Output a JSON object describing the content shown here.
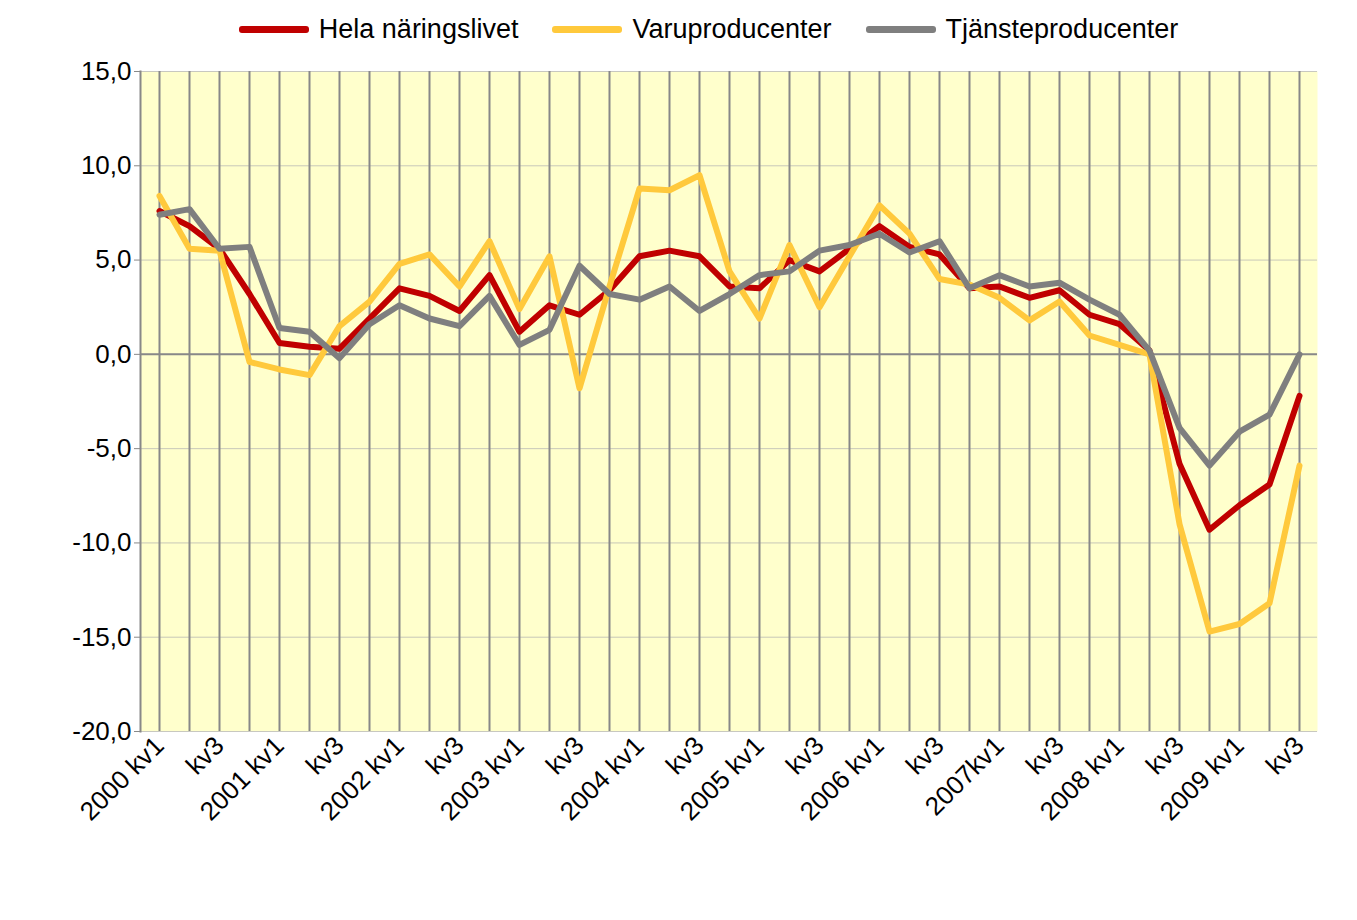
{
  "chart_data": {
    "type": "line",
    "categories": [
      "2000 kv1",
      null,
      "kv3",
      null,
      "2001 kv1",
      null,
      "kv3",
      null,
      "2002 kv1",
      null,
      "kv3",
      null,
      "2003 kv1",
      null,
      "kv3",
      null,
      "2004 kv1",
      null,
      "kv3",
      null,
      "2005 kv1",
      null,
      "kv3",
      null,
      "2006 kv1",
      null,
      "kv3",
      null,
      "2007kv1",
      null,
      "kv3",
      null,
      "2008 kv1",
      null,
      "kv3",
      null,
      "2009 kv1",
      null,
      "kv3"
    ],
    "series": [
      {
        "name": "Hela näringslivet",
        "color": "#c00000",
        "values": [
          7.6,
          6.8,
          5.6,
          3.2,
          0.6,
          0.4,
          0.3,
          1.9,
          3.5,
          3.1,
          2.3,
          4.2,
          1.2,
          2.6,
          2.1,
          3.4,
          5.2,
          5.5,
          5.2,
          3.6,
          3.5,
          5.0,
          4.4,
          5.6,
          6.8,
          5.7,
          5.3,
          3.5,
          3.6,
          3.0,
          3.4,
          2.1,
          1.6,
          0.2,
          -5.8,
          -9.3,
          -8.0,
          -6.9,
          -2.2
        ]
      },
      {
        "name": "Varuproducenter",
        "color": "#ffc93c",
        "values": [
          8.4,
          5.6,
          5.5,
          -0.4,
          -0.8,
          -1.1,
          1.5,
          2.8,
          4.8,
          5.3,
          3.6,
          6.0,
          2.4,
          5.2,
          -1.8,
          3.6,
          8.8,
          8.7,
          9.5,
          4.4,
          1.9,
          5.8,
          2.5,
          5.2,
          7.9,
          6.4,
          4.0,
          3.7,
          3.0,
          1.8,
          2.8,
          1.0,
          0.5,
          0.0,
          -9.0,
          -14.7,
          -14.3,
          -13.2,
          -5.9
        ]
      },
      {
        "name": "Tjänsteproducenter",
        "color": "#7f7f7f",
        "values": [
          7.4,
          7.7,
          5.6,
          5.7,
          1.4,
          1.2,
          -0.2,
          1.6,
          2.6,
          1.9,
          1.5,
          3.1,
          0.5,
          1.3,
          4.7,
          3.2,
          2.9,
          3.6,
          2.3,
          3.2,
          4.2,
          4.4,
          5.5,
          5.8,
          6.4,
          5.4,
          6.0,
          3.5,
          4.2,
          3.6,
          3.8,
          2.9,
          2.1,
          0.2,
          -3.9,
          -5.9,
          -4.1,
          -3.2,
          0.0
        ]
      }
    ],
    "ylim": [
      -20,
      15
    ],
    "yticks": [
      {
        "value": -20,
        "label": "-20,0"
      },
      {
        "value": -15,
        "label": "-15,0"
      },
      {
        "value": -10,
        "label": "-10,0"
      },
      {
        "value": -5,
        "label": "-5,0"
      },
      {
        "value": 0,
        "label": "0,0"
      },
      {
        "value": 5,
        "label": "5,0"
      },
      {
        "value": 10,
        "label": "10,0"
      },
      {
        "value": 15,
        "label": "15,0"
      }
    ],
    "grid": true,
    "legend": "top"
  }
}
